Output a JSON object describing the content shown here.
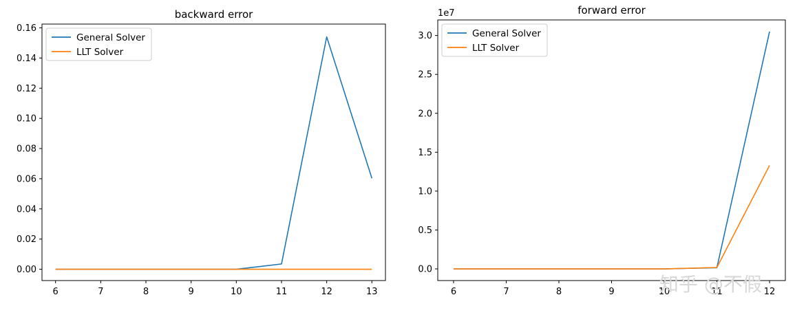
{
  "chart_data": [
    {
      "type": "line",
      "title": "backward error",
      "xlabel": "",
      "ylabel": "",
      "x": [
        6,
        7,
        8,
        9,
        10,
        11,
        12,
        13
      ],
      "xticks": [
        "6",
        "7",
        "8",
        "9",
        "10",
        "11",
        "12",
        "13"
      ],
      "xlim": [
        5.7,
        13.3
      ],
      "ylim": [
        -0.0075,
        0.1625
      ],
      "yticks": [
        0.0,
        0.02,
        0.04,
        0.06,
        0.08,
        0.1,
        0.12,
        0.14,
        0.16
      ],
      "ytick_labels": [
        "0.00",
        "0.02",
        "0.04",
        "0.06",
        "0.08",
        "0.10",
        "0.12",
        "0.14",
        "0.16"
      ],
      "offset_text": "",
      "legend": "upper left",
      "grid": false,
      "series": [
        {
          "name": "General Solver",
          "color": "#1f77b4",
          "values": [
            0.0,
            0.0,
            0.0,
            0.0,
            0.0,
            0.0035,
            0.154,
            0.0603
          ]
        },
        {
          "name": "LLT Solver",
          "color": "#ff7f0e",
          "values": [
            0.0,
            0.0,
            0.0,
            0.0,
            0.0,
            0.0,
            0.0,
            0.0
          ]
        }
      ]
    },
    {
      "type": "line",
      "title": "forward error",
      "xlabel": "",
      "ylabel": "",
      "x": [
        6,
        7,
        8,
        9,
        10,
        11,
        12
      ],
      "xticks": [
        "6",
        "7",
        "8",
        "9",
        "10",
        "11",
        "12"
      ],
      "xlim": [
        5.7,
        12.3
      ],
      "ylim": [
        -0.15,
        3.2
      ],
      "yticks": [
        0.0,
        0.5,
        1.0,
        1.5,
        2.0,
        2.5,
        3.0
      ],
      "ytick_labels": [
        "0.0",
        "0.5",
        "1.0",
        "1.5",
        "2.0",
        "2.5",
        "3.0"
      ],
      "offset_text": "1e7",
      "legend": "upper left",
      "grid": false,
      "series": [
        {
          "name": "General Solver",
          "color": "#1f77b4",
          "values": [
            0.0,
            0.0,
            0.0,
            0.0,
            0.0,
            0.015,
            3.05
          ]
        },
        {
          "name": "LLT Solver",
          "color": "#ff7f0e",
          "values": [
            0.0,
            0.0,
            0.0,
            0.0,
            0.0,
            0.018,
            1.33
          ]
        }
      ]
    }
  ],
  "watermark": "知乎 @不假"
}
